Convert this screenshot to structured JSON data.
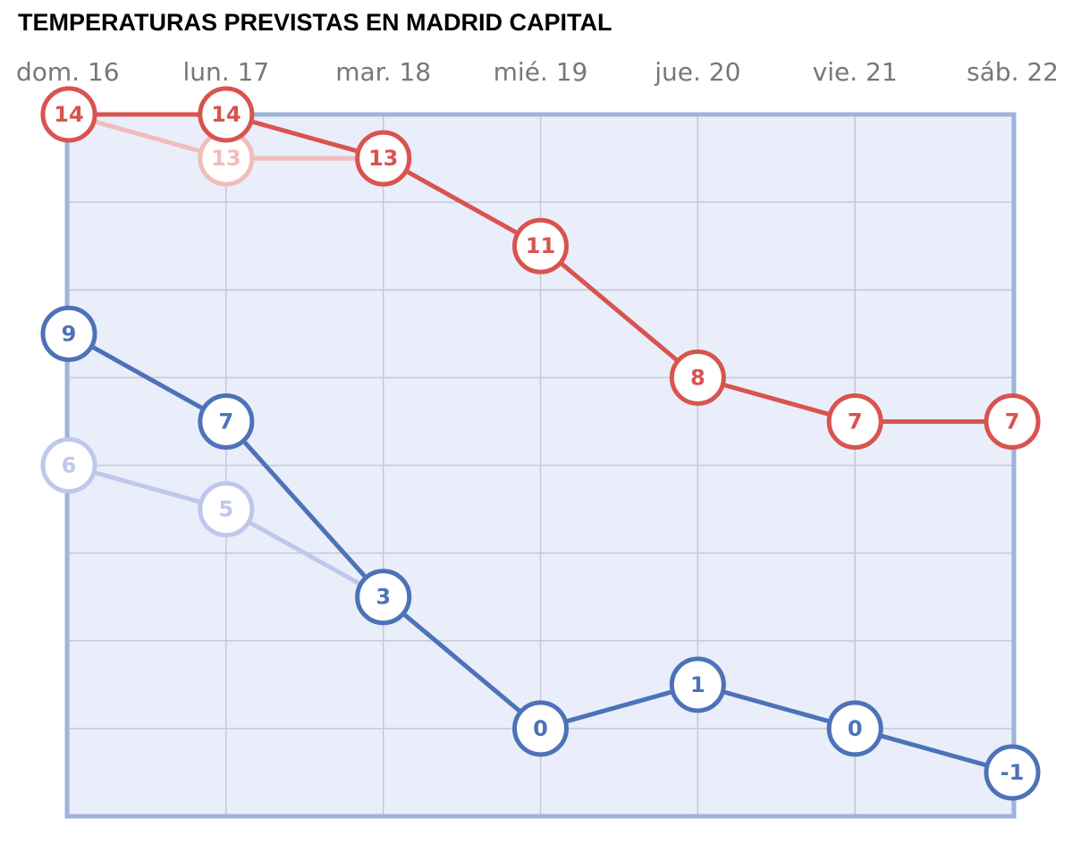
{
  "chart_data": {
    "type": "line",
    "title": "TEMPERATURAS PREVISTAS EN MADRID CAPITAL",
    "categories": [
      "dom. 16",
      "lun. 17",
      "mar. 18",
      "mié. 19",
      "jue. 20",
      "vie. 21",
      "sáb. 22"
    ],
    "series": [
      {
        "color": "#f2bcbc",
        "values": [
          14,
          13,
          13,
          null,
          null,
          null,
          null
        ]
      },
      {
        "color": "#bfc7ec",
        "values": [
          6,
          5,
          3,
          null,
          null,
          null,
          null
        ]
      },
      {
        "color": "#d9534f",
        "values": [
          14,
          14,
          13,
          11,
          8,
          7,
          7
        ]
      },
      {
        "color": "#4d72b8",
        "values": [
          9,
          7,
          3,
          0,
          1,
          0,
          -1
        ]
      }
    ],
    "ylim": [
      -2,
      14
    ],
    "yticks": [
      -2,
      0,
      2,
      4,
      6,
      8,
      10,
      12,
      14
    ],
    "grid": true
  }
}
